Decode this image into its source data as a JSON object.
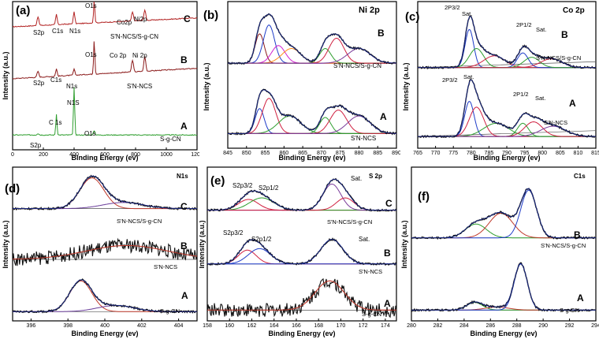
{
  "chart_data": [
    {
      "id": "a",
      "type": "line",
      "panel_label": "(a)",
      "xlabel": "Binding Energy (ev)",
      "ylabel": "Intensity (a.u.)",
      "xlim": [
        0,
        1200
      ],
      "xticks": [
        0,
        200,
        400,
        600,
        800,
        1000,
        1200
      ],
      "series": [
        {
          "name": "C",
          "sample": "S'N-NCS/S-g-CN",
          "color": "#b22222",
          "offset": 0.8,
          "baseline": 0.03,
          "slope": 0.06,
          "peaks": [
            [
              165,
              0.06,
              6
            ],
            [
              285,
              0.07,
              5
            ],
            [
              400,
              0.08,
              5
            ],
            [
              531,
              0.16,
              4
            ],
            [
              780,
              0.06,
              6
            ],
            [
              860,
              0.07,
              6
            ]
          ]
        },
        {
          "name": "B",
          "sample": "S'N-NCS",
          "color": "#8b1a1a",
          "offset": 0.45,
          "baseline": 0.03,
          "slope": 0.07,
          "peaks": [
            [
              165,
              0.04,
              6
            ],
            [
              285,
              0.05,
              5
            ],
            [
              400,
              0.04,
              5
            ],
            [
              531,
              0.23,
              4
            ],
            [
              780,
              0.08,
              6
            ],
            [
              860,
              0.1,
              6
            ]
          ]
        },
        {
          "name": "A",
          "sample": "S-g-CN",
          "color": "#2e9e2e",
          "offset": 0.07,
          "baseline": 0.03,
          "slope": 0.0,
          "peaks": [
            [
              165,
              0.01,
              6
            ],
            [
              285,
              0.14,
              4
            ],
            [
              400,
              0.32,
              4
            ],
            [
              531,
              0.03,
              5
            ]
          ]
        }
      ],
      "annotations": [
        "S2p",
        "C1s",
        "N1s",
        "O1s",
        "Co2p",
        "Ni2p",
        "S2p",
        "C1s",
        "N1s",
        "O1s",
        "Co 2p",
        "Ni 2p",
        "N1S",
        "C 1s",
        "O1s",
        "S2p"
      ]
    },
    {
      "id": "b",
      "type": "line",
      "panel_label": "(b)",
      "title": "Ni 2p",
      "xlabel": "Binding Energy (ev)",
      "ylabel": "Intensity (a.u.)",
      "xlim": [
        845,
        890
      ],
      "xticks": [
        845,
        850,
        855,
        860,
        865,
        870,
        875,
        880,
        885,
        890
      ],
      "series": [
        {
          "name": "B",
          "sample": "S'N-NCS/S-g-CN",
          "offset": 0.58,
          "components": [
            [
              853.5,
              0.2,
              1.2,
              "#8b1a1a"
            ],
            [
              856.0,
              0.26,
              1.5,
              "#1e3cc8"
            ],
            [
              858.5,
              0.12,
              1.8,
              "#d020d0"
            ],
            [
              862.0,
              0.1,
              2.5,
              "#ff8c1a"
            ],
            [
              871.0,
              0.1,
              1.5,
              "#2e9e2e"
            ],
            [
              874.0,
              0.17,
              2.0,
              "#d02040"
            ],
            [
              880.0,
              0.1,
              3.0,
              "#7a3b9a"
            ]
          ]
        },
        {
          "name": "A",
          "sample": "S'N-NCS",
          "offset": 0.1,
          "components": [
            [
              853.5,
              0.17,
              1.2,
              "#1e3cc8"
            ],
            [
              856.0,
              0.24,
              1.8,
              "#d02040"
            ],
            [
              861.5,
              0.12,
              3.0,
              "#2e9e2e"
            ],
            [
              871.0,
              0.11,
              1.5,
              "#2e9e2e"
            ],
            [
              874.5,
              0.16,
              2.2,
              "#d02040"
            ],
            [
              880.0,
              0.12,
              3.0,
              "#7a3b9a"
            ]
          ]
        }
      ]
    },
    {
      "id": "c",
      "type": "line",
      "panel_label": "(c)",
      "title": "Co 2p",
      "xlabel": "Binding Energy (ev)",
      "ylabel": "Intensity (a.u.)",
      "xlim": [
        765,
        815
      ],
      "xticks": [
        765,
        770,
        775,
        780,
        785,
        790,
        795,
        800,
        805,
        810,
        815
      ],
      "series": [
        {
          "name": "B",
          "sample": "S'N-NCS/S-g-CN",
          "offset": 0.55,
          "slope": 0.004,
          "components": [
            [
              779.5,
              0.26,
              1.2,
              "#1e3cc8"
            ],
            [
              781.5,
              0.13,
              2.0,
              "#2e9e2e"
            ],
            [
              786.5,
              0.08,
              3.0,
              "#d02040"
            ],
            [
              794.5,
              0.1,
              1.5,
              "#1e3cc8"
            ],
            [
              797.0,
              0.07,
              2.2,
              "#2e9e2e"
            ],
            [
              802.5,
              0.06,
              3.0,
              "#d02040"
            ]
          ]
        },
        {
          "name": "A",
          "sample": "S'N-NCS",
          "offset": 0.08,
          "slope": 0.004,
          "components": [
            [
              779.5,
              0.24,
              1.3,
              "#1e3cc8"
            ],
            [
              781.5,
              0.2,
              2.0,
              "#d02040"
            ],
            [
              787.0,
              0.09,
              3.5,
              "#2e9e2e"
            ],
            [
              794.5,
              0.09,
              1.5,
              "#2e9e2e"
            ],
            [
              797.5,
              0.1,
              2.5,
              "#d02040"
            ],
            [
              803.0,
              0.07,
              3.5,
              "#7a3b9a"
            ]
          ]
        }
      ],
      "annotations": [
        "2P3/2",
        "Sat.",
        "2P1/2",
        "Sat.",
        "2P3/2",
        "Sat.",
        "2P1/2",
        "Sat."
      ]
    },
    {
      "id": "d",
      "type": "line",
      "panel_label": "(d)",
      "title": "N1s",
      "xlabel": "Binding Energy (ev)",
      "ylabel": "Intensity (a.u.)",
      "xlim": [
        395,
        405
      ],
      "xticks": [
        396,
        398,
        400,
        402,
        404
      ],
      "series": [
        {
          "name": "C",
          "sample": "S'N-NCS/S-g-CN",
          "offset": 0.73,
          "components": [
            [
              399.3,
              0.2,
              0.65,
              "#c0392b"
            ],
            [
              401.0,
              0.04,
              1.1,
              "#6a3d9a"
            ]
          ]
        },
        {
          "name": "B",
          "sample": "S'N-NCS",
          "offset": 0.4,
          "noisy": true,
          "components": [
            [
              401.2,
              0.09,
              2.2,
              "#c0392b"
            ]
          ]
        },
        {
          "name": "A",
          "sample": "S-g-CN",
          "offset": 0.06,
          "components": [
            [
              398.7,
              0.2,
              0.6,
              "#c0392b"
            ],
            [
              400.6,
              0.04,
              1.0,
              "#6a3d9a"
            ]
          ]
        }
      ]
    },
    {
      "id": "e",
      "type": "line",
      "panel_label": "(e)",
      "title": "S 2p",
      "xlabel": "Binding Energy (ev)",
      "ylabel": "Intensity (a.u.)",
      "xlim": [
        158,
        175
      ],
      "xticks": [
        158,
        160,
        162,
        164,
        166,
        168,
        170,
        172,
        174
      ],
      "series": [
        {
          "name": "C",
          "sample": "S'N-NCS/S-g-CN",
          "offset": 0.72,
          "components": [
            [
              161.7,
              0.07,
              0.9,
              "#d02040"
            ],
            [
              162.9,
              0.08,
              1.1,
              "#2e9e2e"
            ],
            [
              169.2,
              0.17,
              0.8,
              "#7a3b9a"
            ],
            [
              170.4,
              0.08,
              0.8,
              "#d02040"
            ]
          ]
        },
        {
          "name": "B",
          "sample": "S'N-NCS",
          "offset": 0.37,
          "components": [
            [
              161.6,
              0.09,
              0.8,
              "#d02040"
            ],
            [
              162.7,
              0.1,
              1.0,
              "#1e3cc8"
            ],
            [
              169.2,
              0.16,
              1.0,
              "#1e3cc8"
            ]
          ]
        },
        {
          "name": "A",
          "sample": "S-g-CN",
          "offset": 0.07,
          "noisy": true,
          "components": [
            [
              169.0,
              0.19,
              1.3,
              "#c0392b"
            ]
          ]
        }
      ],
      "annotations": [
        "S2p3/2",
        "S2p1/2",
        "Sat.",
        "S2p3/2",
        "S2p1/2",
        "Sat."
      ]
    },
    {
      "id": "f",
      "type": "line",
      "panel_label": "(f)",
      "title": "C1s",
      "xlabel": "Binding Energy (ev)",
      "ylabel": "Intensity (a.u.)",
      "xlim": [
        280,
        294
      ],
      "xticks": [
        280,
        282,
        284,
        286,
        288,
        290,
        292,
        294
      ],
      "series": [
        {
          "name": "B",
          "sample": "S'N-NCS/S-g-CN",
          "offset": 0.54,
          "components": [
            [
              284.9,
              0.09,
              0.8,
              "#2e9e2e"
            ],
            [
              286.8,
              0.16,
              0.9,
              "#c0392b"
            ],
            [
              288.9,
              0.31,
              0.6,
              "#1e3cc8"
            ]
          ]
        },
        {
          "name": "A",
          "sample": "S-g-CN",
          "offset": 0.07,
          "components": [
            [
              284.8,
              0.05,
              0.6,
              "#2e9e2e"
            ],
            [
              286.5,
              0.02,
              0.9,
              "#c0392b"
            ],
            [
              288.3,
              0.3,
              0.5,
              "#1e3cc8"
            ]
          ]
        }
      ]
    }
  ]
}
